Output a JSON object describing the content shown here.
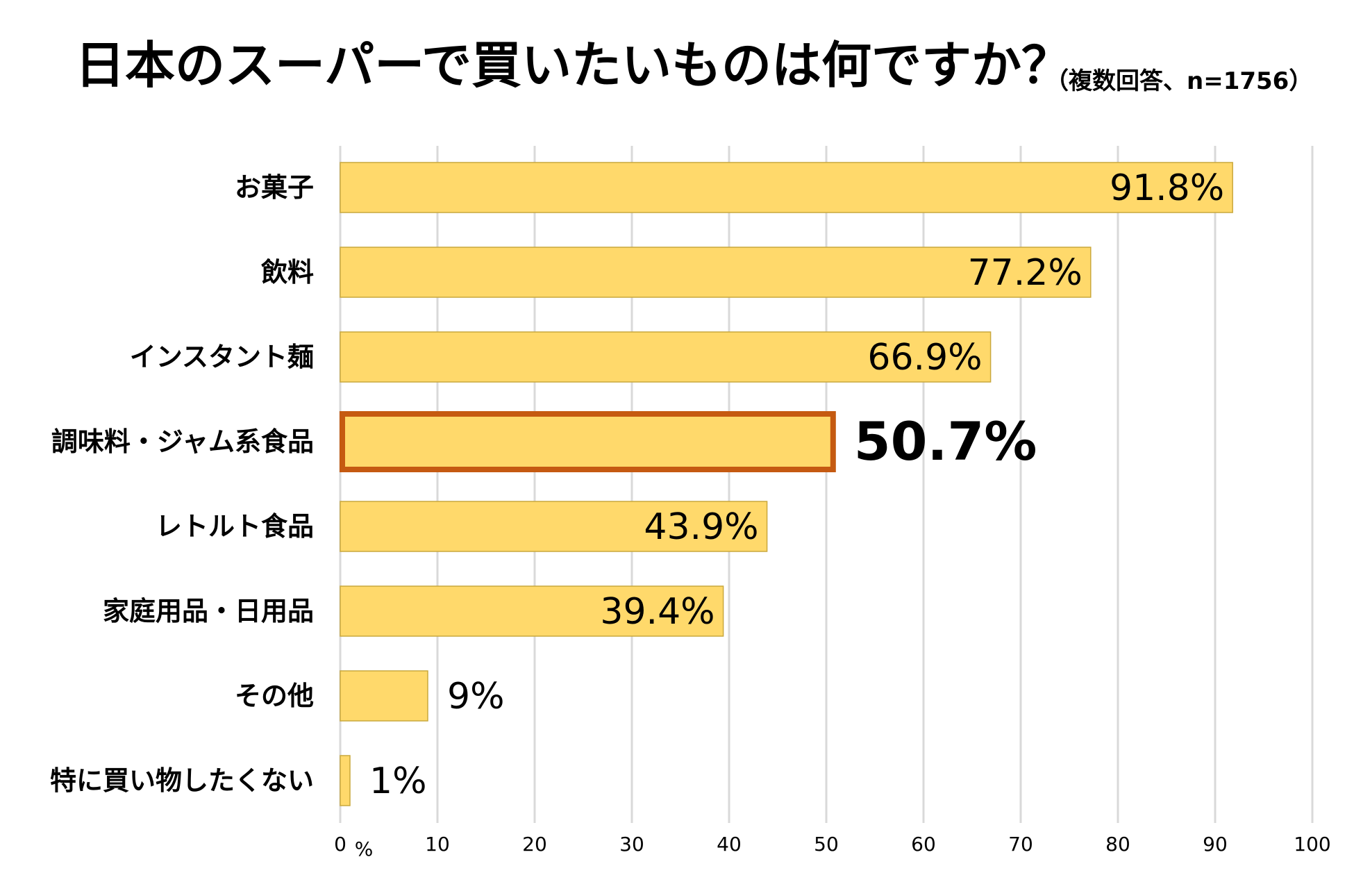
{
  "title": "日本のスーパーで買いたいものは何ですか？",
  "subtitle": "（複数回答、n=1756）",
  "colors": {
    "bar_fill": "#FFD96B",
    "bar_stroke": "#C9A83D",
    "highlight_stroke": "#C55A11",
    "highlight_text": "#C00000",
    "grid": "#D9D9D9"
  },
  "chart_data": {
    "type": "bar",
    "orientation": "horizontal",
    "title": "日本のスーパーで買いたいものは何ですか？",
    "subtitle": "（複数回答、n=1756）",
    "categories": [
      "お菓子",
      "飲料",
      "インスタント麺",
      "調味料・ジャム系食品",
      "レトルト食品",
      "家庭用品・日用品",
      "その他",
      "特に買い物したくない"
    ],
    "values": [
      91.8,
      77.2,
      66.9,
      50.7,
      43.9,
      39.4,
      9,
      1
    ],
    "value_labels": [
      "91.8%",
      "77.2%",
      "66.9%",
      "50.7%",
      "43.9%",
      "39.4%",
      "9%",
      "1%"
    ],
    "highlight_index": 3,
    "xlim": [
      0,
      100
    ],
    "xticks": [
      "0",
      "10",
      "20",
      "30",
      "40",
      "50",
      "60",
      "70",
      "80",
      "90",
      "100"
    ],
    "xunit": "%",
    "grid": true
  }
}
